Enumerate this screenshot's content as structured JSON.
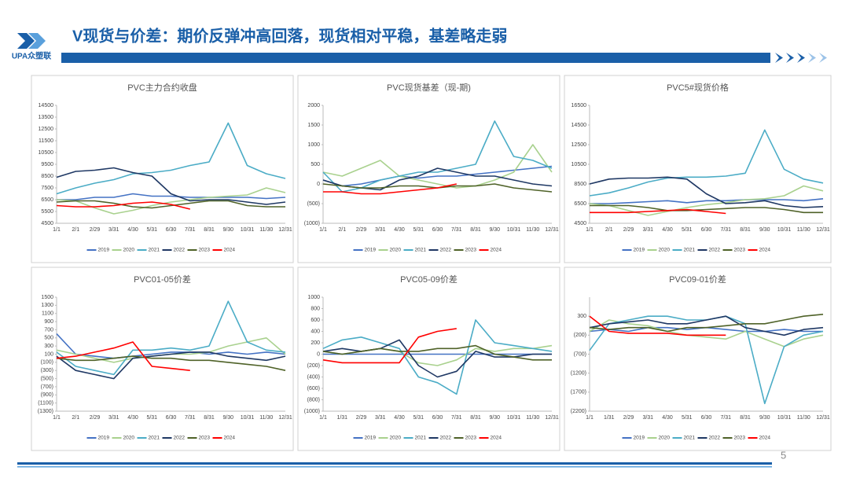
{
  "header": {
    "title": "V现货与价差：期价反弹冲高回落，现货相对平稳，基差略走弱",
    "logo_text": "UPA众塑联",
    "page_number": "5"
  },
  "chart_data": [
    {
      "type": "line",
      "title": "PVC主力合约收盘",
      "categories": [
        "1/1",
        "2/1",
        "2/29",
        "3/31",
        "4/30",
        "5/31",
        "6/30",
        "7/31",
        "8/31",
        "9/30",
        "10/31",
        "11/30",
        "12/31"
      ],
      "ylim": [
        4500,
        14500
      ],
      "yticks": [
        4500,
        5500,
        6500,
        7500,
        8500,
        9500,
        10500,
        11500,
        12500,
        13500,
        14500
      ],
      "series": [
        {
          "name": "2019",
          "color": "#4472c4",
          "values": [
            6500,
            6500,
            6700,
            6700,
            7000,
            6800,
            6800,
            6700,
            6700,
            6700,
            6700,
            6600,
            6700
          ]
        },
        {
          "name": "2020",
          "color": "#a9d18e",
          "values": [
            6500,
            6400,
            5800,
            5300,
            5600,
            6000,
            6300,
            6500,
            6700,
            6800,
            6900,
            7500,
            7100
          ]
        },
        {
          "name": "2021",
          "color": "#4bacc6",
          "values": [
            7000,
            7500,
            7900,
            8200,
            8700,
            8800,
            9000,
            9400,
            9700,
            13000,
            9400,
            8700,
            8300
          ]
        },
        {
          "name": "2022",
          "color": "#1f3864",
          "values": [
            8400,
            8900,
            9000,
            9200,
            8800,
            8500,
            7000,
            6400,
            6500,
            6500,
            6300,
            6100,
            6300
          ]
        },
        {
          "name": "2023",
          "color": "#4f6228",
          "values": [
            6300,
            6400,
            6400,
            6200,
            5900,
            5800,
            6000,
            6200,
            6400,
            6400,
            6000,
            5900,
            5900
          ]
        },
        {
          "name": "2024",
          "color": "#ff0000",
          "values": [
            6000,
            5900,
            5900,
            6000,
            6200,
            6300,
            6100,
            5700,
            null,
            null,
            null,
            null,
            null
          ]
        }
      ]
    },
    {
      "type": "line",
      "title": "PVC现货基差（现-期)",
      "categories": [
        "1/1",
        "2/1",
        "2/29",
        "3/31",
        "4/30",
        "5/31",
        "6/30",
        "7/31",
        "8/31",
        "9/30",
        "10/31",
        "11/30",
        "12/31"
      ],
      "ylim": [
        -1000,
        2000
      ],
      "yticks": [
        {
          "value": -1000,
          "label": "(1000)"
        },
        {
          "value": -500,
          "label": "(500)"
        },
        0,
        500,
        1000,
        1500,
        2000
      ],
      "series": [
        {
          "name": "2019",
          "color": "#4472c4",
          "values": [
            100,
            -50,
            0,
            100,
            200,
            150,
            200,
            200,
            250,
            300,
            350,
            400,
            450
          ]
        },
        {
          "name": "2020",
          "color": "#a9d18e",
          "values": [
            300,
            200,
            400,
            600,
            200,
            100,
            0,
            -100,
            -50,
            100,
            300,
            1000,
            300
          ]
        },
        {
          "name": "2021",
          "color": "#4bacc6",
          "values": [
            300,
            -200,
            -100,
            100,
            200,
            300,
            300,
            400,
            500,
            1600,
            700,
            600,
            400
          ]
        },
        {
          "name": "2022",
          "color": "#1f3864",
          "values": [
            100,
            -50,
            -100,
            -150,
            100,
            200,
            400,
            300,
            200,
            200,
            100,
            0,
            -50
          ]
        },
        {
          "name": "2023",
          "color": "#4f6228",
          "values": [
            0,
            -50,
            -100,
            -100,
            -50,
            -50,
            -100,
            -50,
            -50,
            0,
            -100,
            -150,
            -200
          ]
        },
        {
          "name": "2024",
          "color": "#ff0000",
          "values": [
            -200,
            -200,
            -250,
            -250,
            -200,
            -150,
            -100,
            0,
            null,
            null,
            null,
            null,
            null
          ]
        }
      ]
    },
    {
      "type": "line",
      "title": "PVC5#现货价格",
      "categories": [
        "1/1",
        "2/1",
        "2/29",
        "3/31",
        "4/30",
        "5/31",
        "6/30",
        "7/31",
        "8/31",
        "9/30",
        "10/31",
        "11/30",
        "12/31"
      ],
      "ylim": [
        4500,
        16500
      ],
      "yticks": [
        4500,
        6500,
        8500,
        10500,
        12500,
        14500,
        16500
      ],
      "series": [
        {
          "name": "2019",
          "color": "#4472c4",
          "values": [
            6500,
            6500,
            6600,
            6700,
            6800,
            6600,
            6800,
            6800,
            6900,
            6900,
            6900,
            6800,
            7000
          ]
        },
        {
          "name": "2020",
          "color": "#a9d18e",
          "values": [
            6500,
            6300,
            5800,
            5300,
            5700,
            6100,
            6400,
            6600,
            6900,
            7000,
            7300,
            8300,
            7800
          ]
        },
        {
          "name": "2021",
          "color": "#4bacc6",
          "values": [
            7300,
            7600,
            8100,
            8700,
            9100,
            9200,
            9200,
            9300,
            9600,
            14000,
            10000,
            9000,
            8600
          ]
        },
        {
          "name": "2022",
          "color": "#1f3864",
          "values": [
            8500,
            9000,
            9100,
            9100,
            9200,
            9000,
            7500,
            6500,
            6600,
            6800,
            6300,
            6100,
            6200
          ]
        },
        {
          "name": "2023",
          "color": "#4f6228",
          "values": [
            6300,
            6300,
            6300,
            6100,
            5800,
            5800,
            5900,
            6000,
            6100,
            6100,
            5900,
            5600,
            5600
          ]
        },
        {
          "name": "2024",
          "color": "#ff0000",
          "values": [
            5600,
            5600,
            5600,
            5700,
            5800,
            5900,
            5700,
            5500,
            null,
            null,
            null,
            null,
            null
          ]
        }
      ]
    },
    {
      "type": "line",
      "title": "PVC01-05价差",
      "categories": [
        "1/1",
        "2/1",
        "2/29",
        "3/31",
        "4/30",
        "5/31",
        "6/30",
        "7/31",
        "8/31",
        "9/30",
        "10/31",
        "11/30",
        "12/31"
      ],
      "ylim": [
        -1300,
        1500
      ],
      "yticks": [
        {
          "value": -1300,
          "label": "(1300)"
        },
        {
          "value": -1100,
          "label": "(1100)"
        },
        {
          "value": -900,
          "label": "(900)"
        },
        {
          "value": -700,
          "label": "(700)"
        },
        {
          "value": -500,
          "label": "(500)"
        },
        {
          "value": -300,
          "label": "(300)"
        },
        {
          "value": -100,
          "label": "(100)"
        },
        100,
        300,
        500,
        700,
        900,
        1100,
        1300,
        1500
      ],
      "series": [
        {
          "name": "2019",
          "color": "#4472c4",
          "values": [
            600,
            100,
            50,
            0,
            50,
            100,
            150,
            150,
            100,
            150,
            100,
            150,
            100
          ]
        },
        {
          "name": "2020",
          "color": "#a9d18e",
          "values": [
            200,
            100,
            0,
            -100,
            0,
            50,
            100,
            100,
            150,
            300,
            400,
            500,
            100
          ]
        },
        {
          "name": "2021",
          "color": "#4bacc6",
          "values": [
            150,
            -200,
            -300,
            -400,
            200,
            200,
            250,
            200,
            300,
            1400,
            400,
            200,
            150
          ]
        },
        {
          "name": "2022",
          "color": "#1f3864",
          "values": [
            50,
            -300,
            -400,
            -500,
            0,
            50,
            100,
            150,
            150,
            50,
            0,
            -50,
            50
          ]
        },
        {
          "name": "2023",
          "color": "#4f6228",
          "values": [
            0,
            -50,
            -50,
            0,
            50,
            0,
            0,
            -50,
            -50,
            -100,
            -150,
            -200,
            -300
          ]
        },
        {
          "name": "2024",
          "color": "#ff0000",
          "values": [
            0,
            50,
            150,
            250,
            400,
            -200,
            -250,
            -300,
            null,
            null,
            null,
            null,
            null
          ]
        }
      ]
    },
    {
      "type": "line",
      "title": "PVC05-09价差",
      "categories": [
        "1/1",
        "1/31",
        "2/29",
        "3/31",
        "4/30",
        "5/31",
        "6/30",
        "7/31",
        "8/31",
        "9/30",
        "10/31",
        "11/30",
        "12/31"
      ],
      "ylim": [
        -1000,
        1000
      ],
      "yticks": [
        {
          "value": -1000,
          "label": "(1000)"
        },
        {
          "value": -800,
          "label": "(800)"
        },
        {
          "value": -600,
          "label": "(600)"
        },
        {
          "value": -400,
          "label": "(400)"
        },
        {
          "value": -200,
          "label": "(200)"
        },
        0,
        200,
        400,
        600,
        800,
        1000
      ],
      "series": [
        {
          "name": "2019",
          "color": "#4472c4",
          "values": [
            0,
            0,
            0,
            0,
            0,
            0,
            0,
            0,
            0,
            0,
            0,
            0,
            0
          ]
        },
        {
          "name": "2020",
          "color": "#a9d18e",
          "values": [
            50,
            0,
            50,
            100,
            50,
            -150,
            -200,
            -100,
            100,
            50,
            100,
            100,
            150
          ]
        },
        {
          "name": "2021",
          "color": "#4bacc6",
          "values": [
            100,
            250,
            300,
            200,
            100,
            -400,
            -500,
            -700,
            600,
            200,
            150,
            100,
            50
          ]
        },
        {
          "name": "2022",
          "color": "#1f3864",
          "values": [
            50,
            100,
            50,
            100,
            250,
            -200,
            -400,
            -300,
            50,
            -50,
            -50,
            0,
            0
          ]
        },
        {
          "name": "2023",
          "color": "#4f6228",
          "values": [
            50,
            0,
            50,
            100,
            50,
            50,
            100,
            100,
            150,
            0,
            -50,
            -100,
            -100
          ]
        },
        {
          "name": "2024",
          "color": "#ff0000",
          "values": [
            -100,
            -150,
            -150,
            -150,
            -150,
            300,
            400,
            450,
            null,
            null,
            null,
            null,
            null
          ]
        }
      ]
    },
    {
      "type": "line",
      "title": "PVC09-01价差",
      "categories": [
        "1/1",
        "1/31",
        "2/29",
        "3/31",
        "4/30",
        "5/31",
        "6/30",
        "7/31",
        "8/31",
        "9/30",
        "10/31",
        "11/30",
        "12/31"
      ],
      "ylim": [
        -2200,
        800
      ],
      "yticks": [
        {
          "value": -2200,
          "label": "(2200)"
        },
        {
          "value": -1700,
          "label": "(1700)"
        },
        {
          "value": -1200,
          "label": "(1200)"
        },
        {
          "value": -700,
          "label": "(700)"
        },
        {
          "value": -200,
          "label": "(200)"
        },
        300
      ],
      "series": [
        {
          "name": "2019",
          "color": "#4472c4",
          "values": [
            -100,
            -50,
            -100,
            0,
            0,
            -50,
            0,
            -50,
            -100,
            -100,
            -50,
            -100,
            -100
          ]
        },
        {
          "name": "2020",
          "color": "#a9d18e",
          "values": [
            -100,
            200,
            100,
            50,
            -100,
            -200,
            -250,
            -300,
            -100,
            -300,
            -500,
            -300,
            -200
          ]
        },
        {
          "name": "2021",
          "color": "#4bacc6",
          "values": [
            -600,
            100,
            200,
            300,
            300,
            200,
            200,
            300,
            100,
            -2000,
            -500,
            -200,
            -100
          ]
        },
        {
          "name": "2022",
          "color": "#1f3864",
          "values": [
            0,
            100,
            150,
            200,
            100,
            100,
            200,
            300,
            0,
            -100,
            -200,
            -50,
            0
          ]
        },
        {
          "name": "2023",
          "color": "#4f6228",
          "values": [
            0,
            -50,
            0,
            0,
            -100,
            0,
            0,
            50,
            100,
            100,
            200,
            300,
            350
          ]
        },
        {
          "name": "2024",
          "color": "#ff0000",
          "values": [
            300,
            -100,
            -150,
            -150,
            -150,
            -200,
            -200,
            -200,
            null,
            null,
            null,
            null,
            null
          ]
        }
      ]
    }
  ]
}
